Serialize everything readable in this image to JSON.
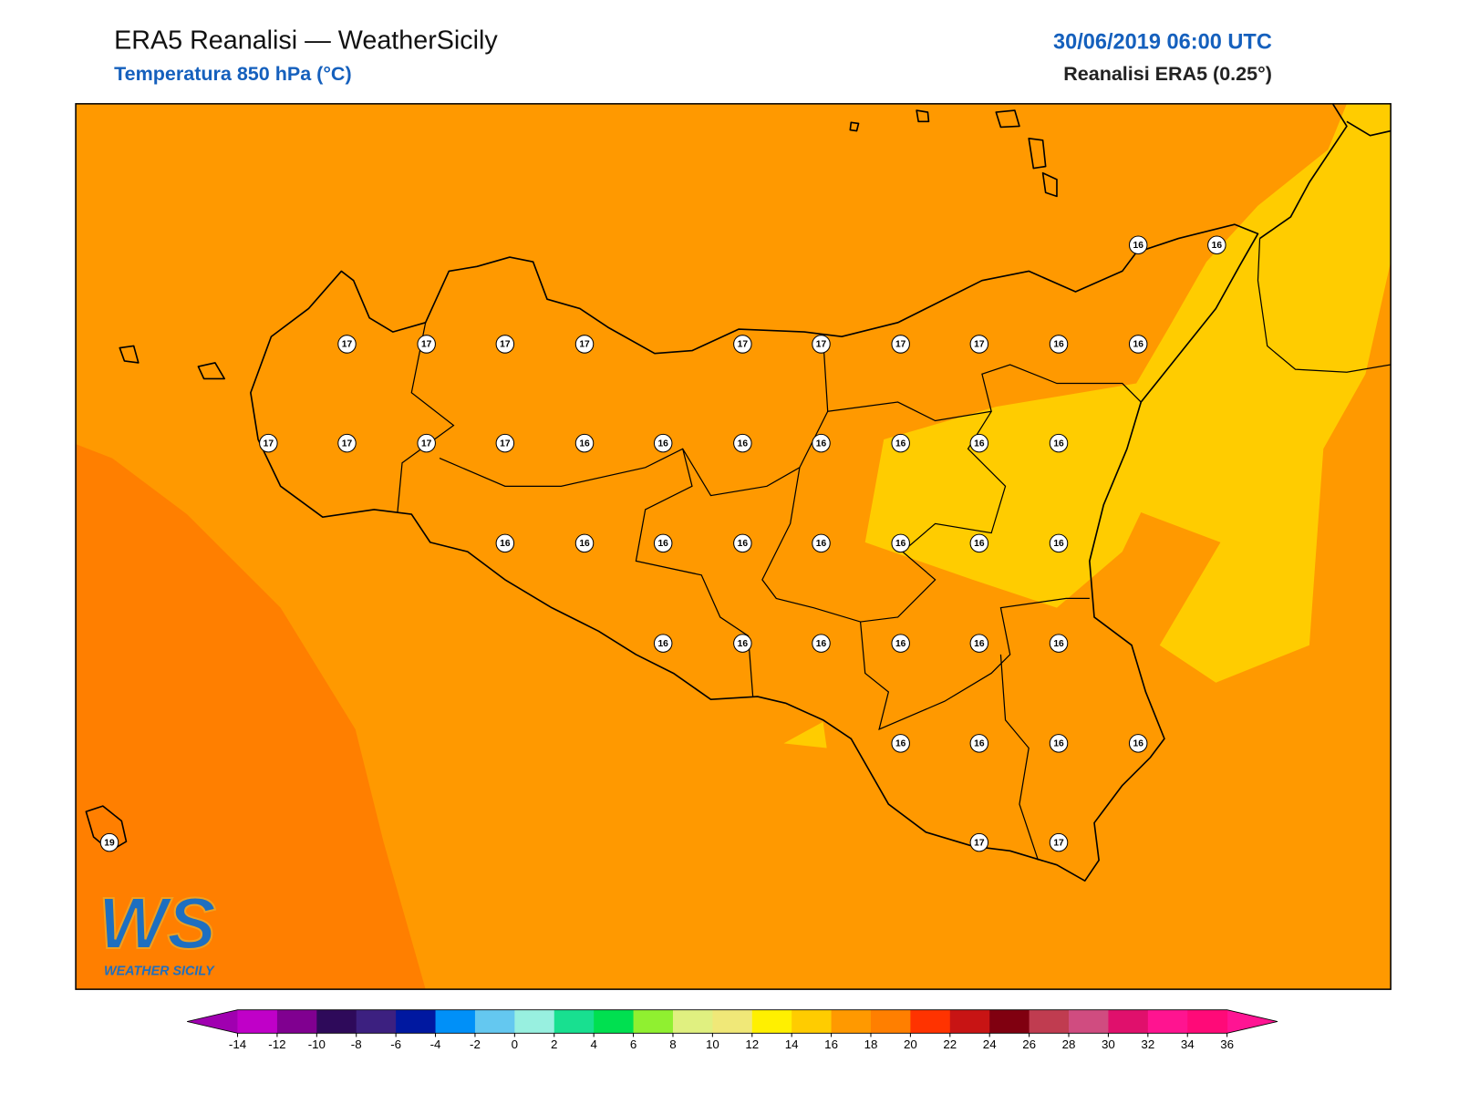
{
  "header": {
    "title": "ERA5 Reanalisi — WeatherSicily",
    "subtitle": "Temperatura 850 hPa (°C)",
    "date": "30/06/2019 06:00 UTC",
    "model": "Reanalisi ERA5 (0.25°)"
  },
  "stations": {
    "values": [
      16,
      16,
      17,
      17,
      17,
      17,
      17,
      17,
      17,
      17,
      16,
      16,
      17,
      17,
      17,
      17,
      16,
      16,
      16,
      16,
      16,
      16,
      16,
      16,
      16,
      16,
      16,
      16,
      16,
      16,
      16,
      16,
      16,
      16,
      16,
      16,
      16,
      16,
      16,
      16,
      16,
      19,
      17,
      17
    ]
  },
  "logo": {
    "mark": "WS",
    "text": "WEATHER SICILY"
  },
  "colorbar": {
    "ticks": [
      -14,
      -12,
      -10,
      -8,
      -6,
      -4,
      -2,
      0,
      2,
      4,
      6,
      8,
      10,
      12,
      14,
      16,
      18,
      20,
      22,
      24,
      26,
      28,
      30,
      32,
      34,
      36
    ],
    "under_color": "#a000b0",
    "over_color": "#ff1493",
    "colors": [
      "#c000c8",
      "#800090",
      "#2e0a5a",
      "#3c2080",
      "#0018a0",
      "#0090f8",
      "#64c8f0",
      "#98f0e0",
      "#18e090",
      "#00e050",
      "#90f030",
      "#e0f080",
      "#f0e878",
      "#fff000",
      "#ffcc00",
      "#ff9900",
      "#ff7f00",
      "#ff3300",
      "#c81414",
      "#800010",
      "#c03c50",
      "#d04c80",
      "#e0106c",
      "#ff1490",
      "#ff0a78"
    ]
  }
}
